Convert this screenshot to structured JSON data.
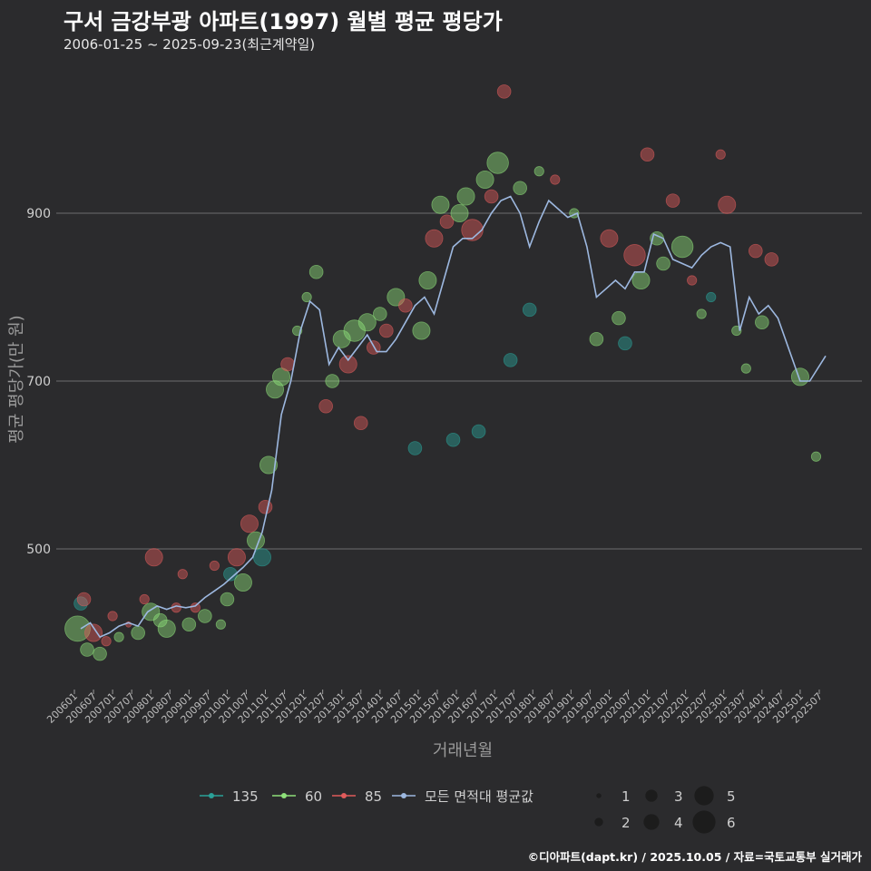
{
  "title": "구서 금강부광 아파트(1997) 월별 평균 평당가",
  "subtitle": "2006-01-25 ~ 2025-09-23(최근계약일)",
  "caption": "©디아파트(dapt.kr) / 2025.10.05 / 자료=국토교통부 실거래가",
  "chart_data": {
    "type": "scatter",
    "xlabel": "거래년월",
    "ylabel": "평균 평당가(만 원)",
    "y_ticks": [
      500,
      700,
      900
    ],
    "x_ticks": [
      "200601",
      "200607",
      "200701",
      "200707",
      "200801",
      "200807",
      "200901",
      "200907",
      "201001",
      "201007",
      "201101",
      "201107",
      "201201",
      "201207",
      "201301",
      "201307",
      "201401",
      "201407",
      "201501",
      "201507",
      "201601",
      "201607",
      "201701",
      "201707",
      "201801",
      "201807",
      "201901",
      "201907",
      "202001",
      "202007",
      "202101",
      "202107",
      "202201",
      "202207",
      "202301",
      "202307",
      "202401",
      "202407",
      "202501",
      "202507"
    ],
    "colors": {
      "135": "#2aa198",
      "60": "#8ee07a",
      "85": "#e05b5b",
      "avg": "#9db8e0"
    },
    "legend_series": [
      {
        "key": "135",
        "label": "135"
      },
      {
        "key": "60",
        "label": "60"
      },
      {
        "key": "85",
        "label": "85"
      },
      {
        "key": "avg",
        "label": "모든 면적대 평균값"
      }
    ],
    "legend_sizes": [
      1,
      2,
      3,
      4,
      5,
      6
    ],
    "average_line": [
      [
        "2006-03",
        405
      ],
      [
        "2006-06",
        412
      ],
      [
        "2006-09",
        395
      ],
      [
        "2006-12",
        400
      ],
      [
        "2007-03",
        408
      ],
      [
        "2007-06",
        412
      ],
      [
        "2007-09",
        408
      ],
      [
        "2007-12",
        425
      ],
      [
        "2008-03",
        432
      ],
      [
        "2008-06",
        428
      ],
      [
        "2008-09",
        432
      ],
      [
        "2008-12",
        430
      ],
      [
        "2009-03",
        432
      ],
      [
        "2009-06",
        442
      ],
      [
        "2009-09",
        450
      ],
      [
        "2009-12",
        458
      ],
      [
        "2010-03",
        468
      ],
      [
        "2010-06",
        478
      ],
      [
        "2010-09",
        490
      ],
      [
        "2010-12",
        520
      ],
      [
        "2011-03",
        570
      ],
      [
        "2011-06",
        660
      ],
      [
        "2011-09",
        700
      ],
      [
        "2011-12",
        760
      ],
      [
        "2012-03",
        795
      ],
      [
        "2012-06",
        785
      ],
      [
        "2012-09",
        720
      ],
      [
        "2012-12",
        740
      ],
      [
        "2013-03",
        725
      ],
      [
        "2013-06",
        740
      ],
      [
        "2013-09",
        755
      ],
      [
        "2013-12",
        735
      ],
      [
        "2014-03",
        735
      ],
      [
        "2014-06",
        750
      ],
      [
        "2014-09",
        770
      ],
      [
        "2014-12",
        790
      ],
      [
        "2015-03",
        800
      ],
      [
        "2015-06",
        780
      ],
      [
        "2015-09",
        820
      ],
      [
        "2015-12",
        860
      ],
      [
        "2016-03",
        870
      ],
      [
        "2016-06",
        870
      ],
      [
        "2016-09",
        880
      ],
      [
        "2016-12",
        900
      ],
      [
        "2017-03",
        915
      ],
      [
        "2017-06",
        920
      ],
      [
        "2017-09",
        900
      ],
      [
        "2017-12",
        860
      ],
      [
        "2018-03",
        890
      ],
      [
        "2018-06",
        915
      ],
      [
        "2018-09",
        905
      ],
      [
        "2018-12",
        895
      ],
      [
        "2019-03",
        900
      ],
      [
        "2019-06",
        860
      ],
      [
        "2019-09",
        800
      ],
      [
        "2019-12",
        810
      ],
      [
        "2020-03",
        820
      ],
      [
        "2020-06",
        810
      ],
      [
        "2020-09",
        830
      ],
      [
        "2020-12",
        830
      ],
      [
        "2021-03",
        875
      ],
      [
        "2021-06",
        870
      ],
      [
        "2021-09",
        845
      ],
      [
        "2021-12",
        840
      ],
      [
        "2022-03",
        835
      ],
      [
        "2022-06",
        850
      ],
      [
        "2022-09",
        860
      ],
      [
        "2022-12",
        865
      ],
      [
        "2023-03",
        860
      ],
      [
        "2023-06",
        760
      ],
      [
        "2023-09",
        800
      ],
      [
        "2023-12",
        780
      ],
      [
        "2024-03",
        790
      ],
      [
        "2024-06",
        775
      ],
      [
        "2025-01",
        700
      ],
      [
        "2025-04",
        700
      ],
      [
        "2025-09",
        730
      ]
    ],
    "points": [
      [
        "2006-02",
        405,
        "60",
        6
      ],
      [
        "2006-03",
        435,
        "135",
        3
      ],
      [
        "2006-04",
        440,
        "85",
        3
      ],
      [
        "2006-05",
        380,
        "60",
        3
      ],
      [
        "2006-07",
        400,
        "85",
        4
      ],
      [
        "2006-09",
        375,
        "60",
        3
      ],
      [
        "2006-11",
        390,
        "85",
        2
      ],
      [
        "2007-01",
        420,
        "85",
        2
      ],
      [
        "2007-03",
        395,
        "60",
        2
      ],
      [
        "2007-06",
        410,
        "85",
        1
      ],
      [
        "2007-09",
        400,
        "60",
        3
      ],
      [
        "2007-11",
        440,
        "85",
        2
      ],
      [
        "2008-01",
        425,
        "60",
        4
      ],
      [
        "2008-02",
        490,
        "85",
        4
      ],
      [
        "2008-04",
        415,
        "60",
        3
      ],
      [
        "2008-06",
        405,
        "60",
        4
      ],
      [
        "2008-09",
        430,
        "85",
        2
      ],
      [
        "2008-11",
        470,
        "85",
        2
      ],
      [
        "2009-01",
        410,
        "60",
        3
      ],
      [
        "2009-03",
        430,
        "85",
        2
      ],
      [
        "2009-06",
        420,
        "60",
        3
      ],
      [
        "2009-09",
        480,
        "85",
        2
      ],
      [
        "2009-11",
        410,
        "60",
        2
      ],
      [
        "2010-01",
        440,
        "60",
        3
      ],
      [
        "2010-02",
        470,
        "135",
        3
      ],
      [
        "2010-04",
        490,
        "85",
        4
      ],
      [
        "2010-06",
        460,
        "60",
        4
      ],
      [
        "2010-08",
        530,
        "85",
        4
      ],
      [
        "2010-10",
        510,
        "60",
        4
      ],
      [
        "2010-12",
        490,
        "135",
        4
      ],
      [
        "2011-01",
        550,
        "85",
        3
      ],
      [
        "2011-02",
        600,
        "60",
        4
      ],
      [
        "2011-04",
        690,
        "60",
        4
      ],
      [
        "2011-06",
        705,
        "60",
        4
      ],
      [
        "2011-08",
        720,
        "85",
        3
      ],
      [
        "2011-11",
        760,
        "60",
        2
      ],
      [
        "2012-02",
        800,
        "60",
        2
      ],
      [
        "2012-05",
        830,
        "60",
        3
      ],
      [
        "2012-08",
        670,
        "85",
        3
      ],
      [
        "2012-10",
        700,
        "60",
        3
      ],
      [
        "2013-01",
        750,
        "60",
        4
      ],
      [
        "2013-03",
        720,
        "85",
        4
      ],
      [
        "2013-05",
        760,
        "60",
        5
      ],
      [
        "2013-07",
        650,
        "85",
        3
      ],
      [
        "2013-09",
        770,
        "60",
        4
      ],
      [
        "2013-11",
        740,
        "85",
        3
      ],
      [
        "2014-01",
        780,
        "60",
        3
      ],
      [
        "2014-03",
        760,
        "85",
        3
      ],
      [
        "2014-06",
        800,
        "60",
        4
      ],
      [
        "2014-09",
        790,
        "85",
        3
      ],
      [
        "2014-12",
        620,
        "135",
        3
      ],
      [
        "2015-02",
        760,
        "60",
        4
      ],
      [
        "2015-04",
        820,
        "60",
        4
      ],
      [
        "2015-06",
        870,
        "85",
        4
      ],
      [
        "2015-08",
        910,
        "60",
        4
      ],
      [
        "2015-10",
        890,
        "85",
        3
      ],
      [
        "2015-12",
        630,
        "135",
        3
      ],
      [
        "2016-02",
        900,
        "60",
        4
      ],
      [
        "2016-04",
        920,
        "60",
        4
      ],
      [
        "2016-06",
        880,
        "85",
        5
      ],
      [
        "2016-08",
        640,
        "135",
        3
      ],
      [
        "2016-10",
        940,
        "60",
        4
      ],
      [
        "2016-12",
        920,
        "85",
        3
      ],
      [
        "2017-02",
        960,
        "60",
        5
      ],
      [
        "2017-04",
        1045,
        "85",
        3
      ],
      [
        "2017-06",
        725,
        "135",
        3
      ],
      [
        "2017-09",
        930,
        "60",
        3
      ],
      [
        "2017-12",
        785,
        "135",
        3
      ],
      [
        "2018-03",
        950,
        "60",
        2
      ],
      [
        "2018-08",
        940,
        "85",
        2
      ],
      [
        "2019-02",
        900,
        "60",
        2
      ],
      [
        "2019-09",
        750,
        "60",
        3
      ],
      [
        "2020-01",
        870,
        "85",
        4
      ],
      [
        "2020-04",
        775,
        "60",
        3
      ],
      [
        "2020-06",
        745,
        "135",
        3
      ],
      [
        "2020-09",
        850,
        "85",
        5
      ],
      [
        "2020-11",
        820,
        "60",
        4
      ],
      [
        "2021-01",
        970,
        "85",
        3
      ],
      [
        "2021-04",
        870,
        "60",
        3
      ],
      [
        "2021-06",
        840,
        "60",
        3
      ],
      [
        "2021-09",
        915,
        "85",
        3
      ],
      [
        "2021-12",
        860,
        "60",
        5
      ],
      [
        "2022-03",
        820,
        "85",
        2
      ],
      [
        "2022-06",
        780,
        "60",
        2
      ],
      [
        "2022-09",
        800,
        "135",
        2
      ],
      [
        "2022-12",
        970,
        "85",
        2
      ],
      [
        "2023-02",
        910,
        "85",
        4
      ],
      [
        "2023-05",
        760,
        "60",
        2
      ],
      [
        "2023-08",
        715,
        "60",
        2
      ],
      [
        "2023-11",
        855,
        "85",
        3
      ],
      [
        "2024-01",
        770,
        "60",
        3
      ],
      [
        "2024-04",
        845,
        "85",
        3
      ],
      [
        "2025-01",
        705,
        "60",
        4
      ],
      [
        "2025-06",
        610,
        "60",
        2
      ]
    ]
  }
}
